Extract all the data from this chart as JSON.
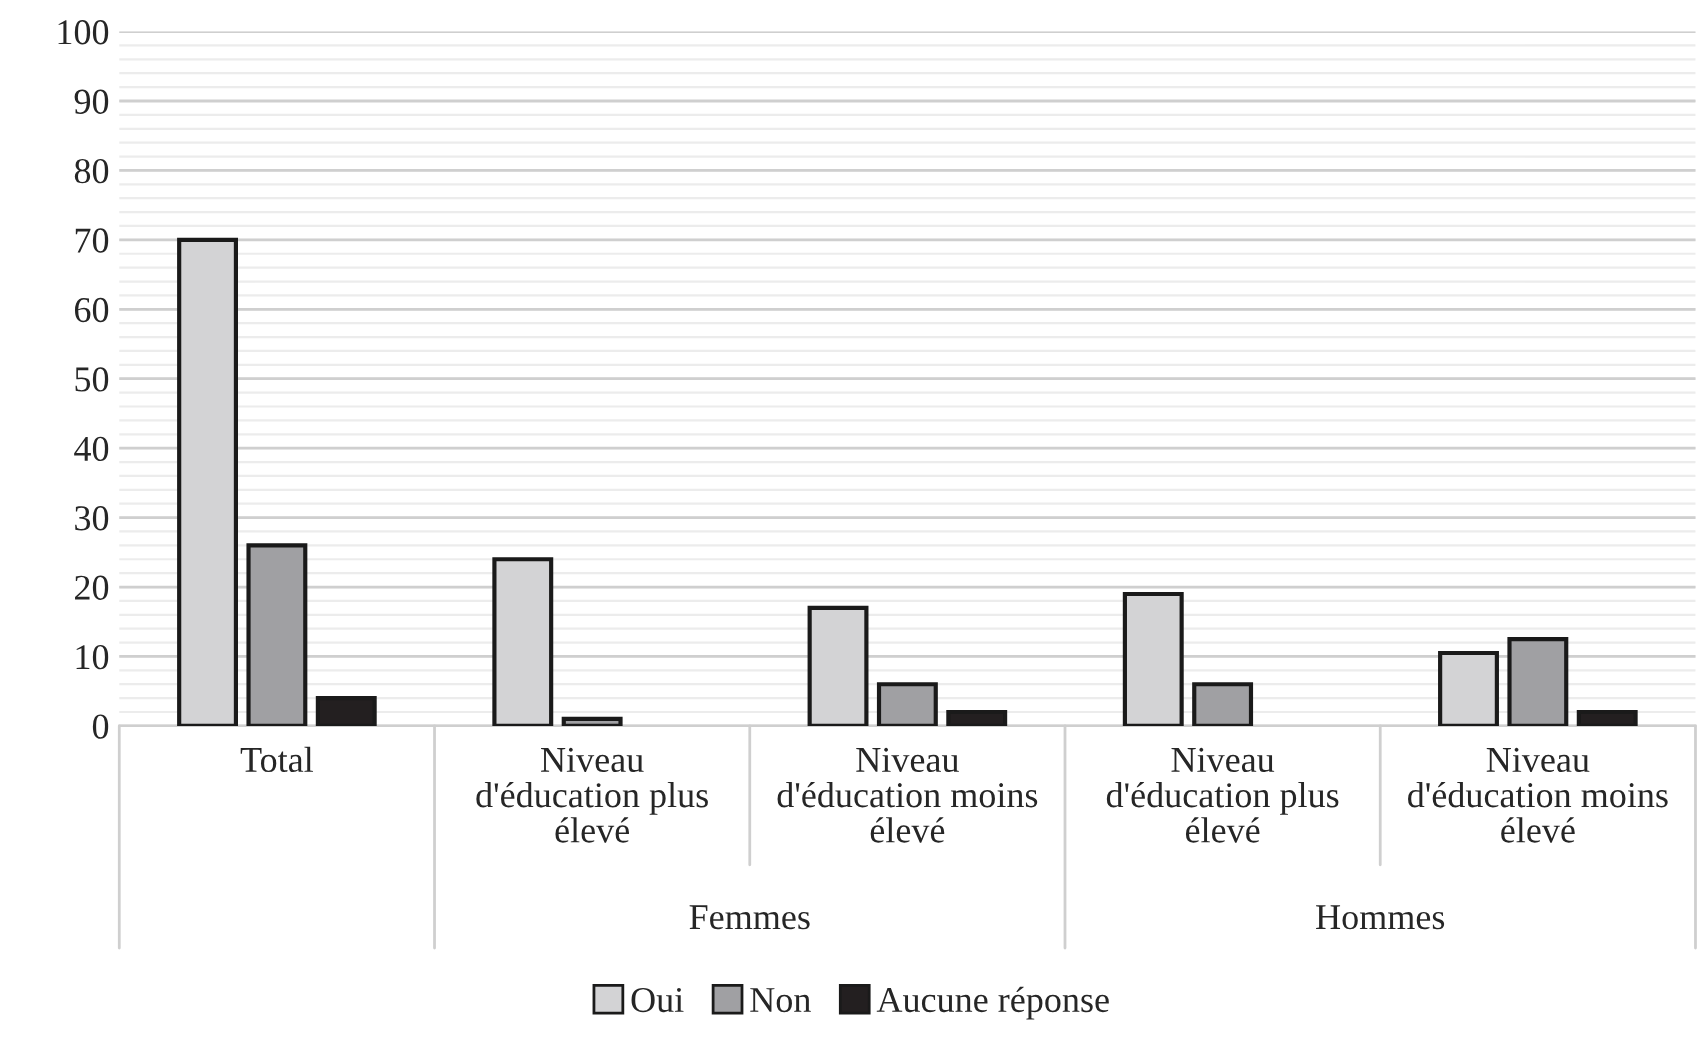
{
  "chart_data": {
    "type": "bar",
    "categories": [
      "Total",
      "Niveau d'éducation plus élevé",
      "Niveau d'éducation moins élevé",
      "Niveau d'éducation plus élevé",
      "Niveau d'éducation moins élevé"
    ],
    "series": [
      {
        "name": "Oui",
        "color": "#d3d3d5",
        "values": [
          70,
          24,
          17,
          19,
          10.5
        ]
      },
      {
        "name": "Non",
        "color": "#a0a0a3",
        "values": [
          26,
          1,
          6,
          6,
          12.5
        ]
      },
      {
        "name": "Aucune réponse",
        "color": "#231f20",
        "values": [
          4,
          null,
          2,
          null,
          2
        ]
      }
    ],
    "annotations": [
      "Femmes",
      "Hommes"
    ],
    "ylim": [
      0,
      100
    ],
    "yticks": [
      0,
      10,
      20,
      30,
      40,
      50,
      60,
      70,
      80,
      90,
      100
    ],
    "grid": "y",
    "legend": "bottom"
  }
}
